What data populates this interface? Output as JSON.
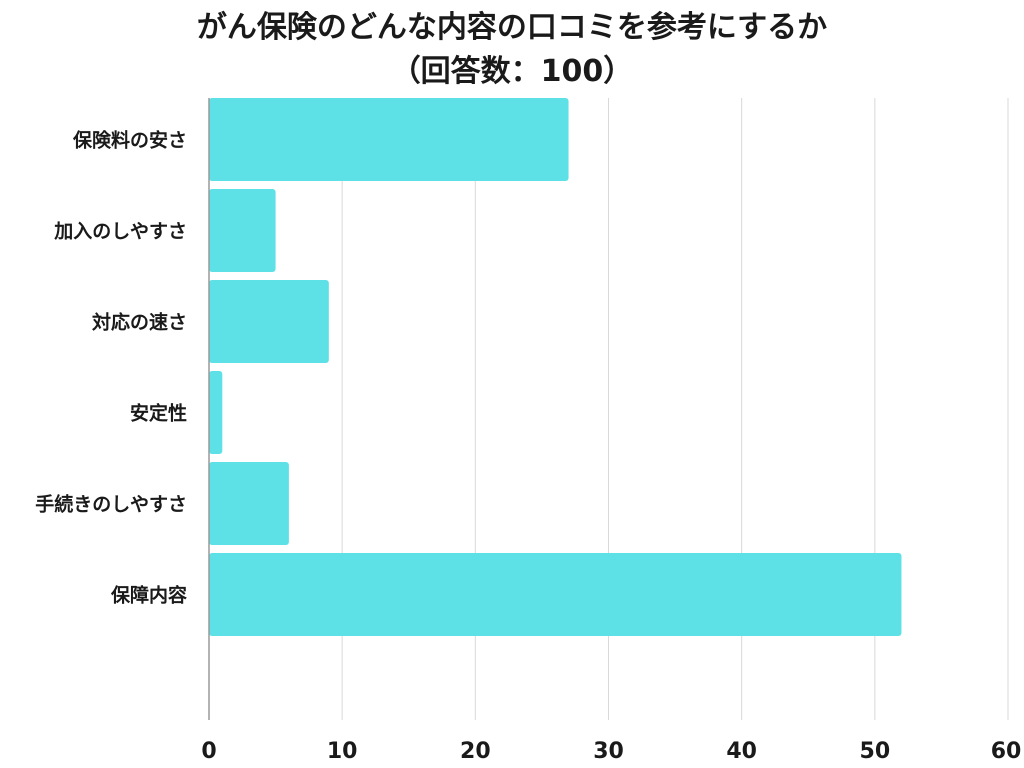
{
  "chart_data": {
    "type": "bar",
    "orientation": "horizontal",
    "title": "がん保険のどんな内容の口コミを参考にするか",
    "subtitle": "（回答数：100）",
    "categories": [
      "保険料の安さ",
      "加入のしやすさ",
      "対応の速さ",
      "安定性",
      "手続きのしやすさ",
      "保障内容"
    ],
    "values": [
      27,
      5,
      9,
      1,
      6,
      52
    ],
    "xlim": [
      0,
      60
    ],
    "xticks": [
      0,
      10,
      20,
      30,
      40,
      50,
      60
    ],
    "grid": true,
    "legend": "none",
    "bar_color": "#5de1e6",
    "grid_color": "#d9d9d9",
    "axis_color": "#9a9a9a"
  }
}
